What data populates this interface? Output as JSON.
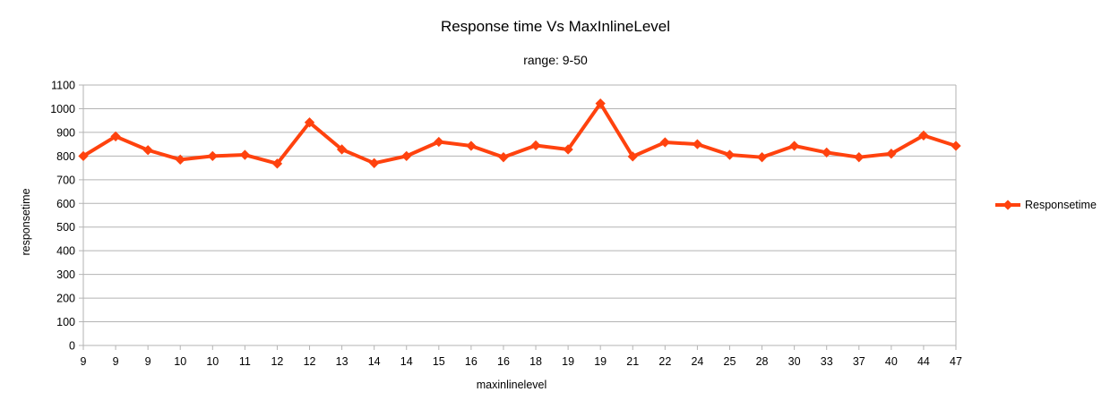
{
  "chart_data": {
    "type": "line",
    "title": "Response time Vs MaxInlineLevel",
    "subtitle": "range: 9-50",
    "xlabel": "maxinlinelevel",
    "ylabel": "responsetime",
    "ylim": [
      0,
      1100
    ],
    "ytick_step": 100,
    "grid": true,
    "legend_position": "right",
    "categories": [
      "9",
      "9",
      "9",
      "10",
      "10",
      "11",
      "12",
      "12",
      "13",
      "14",
      "14",
      "15",
      "16",
      "16",
      "18",
      "19",
      "19",
      "21",
      "22",
      "24",
      "25",
      "28",
      "30",
      "33",
      "37",
      "40",
      "44",
      "47"
    ],
    "series": [
      {
        "name": "Responsetime",
        "color": "#ff420e",
        "marker": "diamond",
        "values": [
          800,
          883,
          825,
          785,
          800,
          805,
          768,
          942,
          828,
          770,
          800,
          860,
          843,
          795,
          845,
          828,
          1022,
          798,
          858,
          850,
          805,
          795,
          843,
          815,
          795,
          810,
          887,
          843
        ]
      }
    ]
  },
  "colors": {
    "gridline": "#b3b3b3",
    "axis": "#b3b3b3"
  }
}
